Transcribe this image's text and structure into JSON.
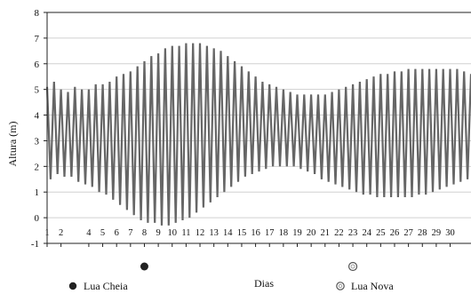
{
  "chart_data": {
    "type": "line",
    "title": "",
    "xlabel": "Dias",
    "ylabel": "Altura (m)",
    "ylim": [
      -1,
      8
    ],
    "yticks": [
      "-1",
      "0",
      "1",
      "2",
      "3",
      "4",
      "5",
      "6",
      "7",
      "8"
    ],
    "xlim": [
      1,
      31.5
    ],
    "xticks": [
      "1",
      "2",
      "4",
      "5",
      "6",
      "7",
      "8",
      "9",
      "10",
      "11",
      "12",
      "13",
      "14",
      "15",
      "16",
      "17",
      "18",
      "19",
      "20",
      "21",
      "22",
      "23",
      "24",
      "25",
      "26",
      "27",
      "28",
      "29",
      "30"
    ],
    "grid": true,
    "series": [
      {
        "name": "",
        "color": "#666666",
        "description_note": "",
        "x_start_day": 1,
        "tides_per_day": 2,
        "high_water": [
          5.1,
          5.3,
          5.0,
          4.9,
          5.1,
          5.0,
          5.0,
          5.2,
          5.2,
          5.3,
          5.5,
          5.6,
          5.7,
          5.9,
          6.1,
          6.3,
          6.4,
          6.6,
          6.7,
          6.7,
          6.8,
          6.8,
          6.8,
          6.7,
          6.6,
          6.5,
          6.3,
          6.1,
          5.9,
          5.7,
          5.5,
          5.3,
          5.2,
          5.1,
          5.0,
          4.9,
          4.8,
          4.8,
          4.8,
          4.8,
          4.8,
          4.9,
          5.0,
          5.1,
          5.2,
          5.3,
          5.4,
          5.5,
          5.6,
          5.6,
          5.7,
          5.7,
          5.8,
          5.8,
          5.8,
          5.8,
          5.8,
          5.8,
          5.8,
          5.8,
          5.7,
          5.6
        ],
        "low_water": [
          1.5,
          1.7,
          1.6,
          1.6,
          1.4,
          1.3,
          1.2,
          1.0,
          0.9,
          0.7,
          0.5,
          0.3,
          0.1,
          -0.1,
          -0.2,
          -0.2,
          -0.3,
          -0.3,
          -0.2,
          -0.1,
          0.0,
          0.2,
          0.4,
          0.6,
          0.8,
          1.0,
          1.2,
          1.4,
          1.6,
          1.7,
          1.8,
          1.9,
          2.0,
          2.0,
          2.0,
          2.0,
          1.9,
          1.8,
          1.7,
          1.5,
          1.4,
          1.3,
          1.2,
          1.1,
          1.0,
          0.9,
          0.9,
          0.8,
          0.8,
          0.8,
          0.8,
          0.8,
          0.8,
          0.9,
          0.9,
          1.0,
          1.1,
          1.2,
          1.3,
          1.4,
          1.5,
          1.6
        ]
      }
    ],
    "annotations": [
      {
        "type": "moon-phase",
        "label": "Lua Cheia",
        "day": 8,
        "icon": "full-moon-icon"
      },
      {
        "type": "moon-phase",
        "label": "Lua Nova",
        "day": 23,
        "icon": "new-moon-icon"
      }
    ],
    "legend": [
      {
        "label": "Lua Cheia",
        "icon": "full-moon-icon"
      },
      {
        "label": "Lua Nova",
        "icon": "new-moon-icon"
      }
    ]
  }
}
